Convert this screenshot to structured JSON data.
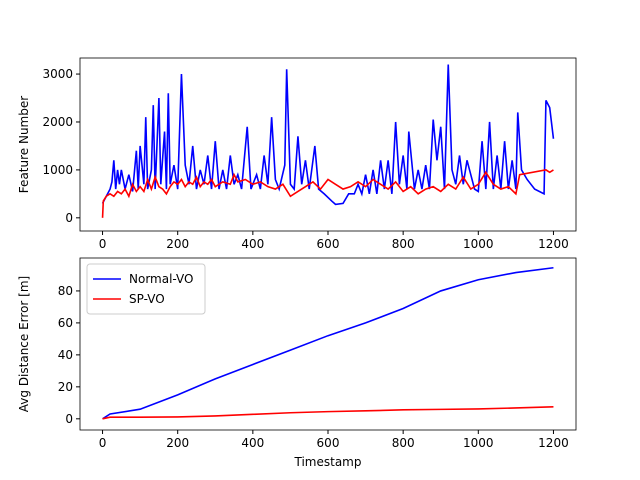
{
  "chart_data": [
    {
      "type": "line",
      "ylabel": "Feature Number",
      "xlim": [
        -60,
        1260
      ],
      "ylim": [
        -275,
        3335
      ],
      "xticks": [
        0,
        200,
        400,
        600,
        800,
        1000,
        1200
      ],
      "yticks": [
        0,
        1000,
        2000,
        3000
      ],
      "series": [
        {
          "color": "#0000ff",
          "x": [
            0,
            10,
            20,
            25,
            30,
            35,
            40,
            45,
            50,
            60,
            70,
            80,
            90,
            95,
            100,
            110,
            115,
            120,
            130,
            135,
            140,
            150,
            155,
            165,
            170,
            175,
            180,
            190,
            200,
            210,
            220,
            230,
            240,
            250,
            260,
            270,
            280,
            290,
            300,
            310,
            320,
            330,
            340,
            350,
            360,
            370,
            385,
            395,
            410,
            420,
            430,
            440,
            450,
            460,
            470,
            485,
            490,
            500,
            510,
            520,
            530,
            540,
            550,
            565,
            575,
            590,
            610,
            620,
            640,
            655,
            670,
            680,
            690,
            700,
            710,
            720,
            730,
            740,
            750,
            760,
            770,
            780,
            790,
            800,
            810,
            815,
            830,
            840,
            850,
            860,
            870,
            880,
            890,
            900,
            910,
            920,
            930,
            940,
            950,
            960,
            970,
            980,
            990,
            1000,
            1010,
            1020,
            1030,
            1040,
            1050,
            1060,
            1070,
            1080,
            1090,
            1100,
            1105,
            1115,
            1130,
            1150,
            1175,
            1180,
            1190,
            1200
          ],
          "values": [
            300,
            450,
            600,
            750,
            1200,
            600,
            1000,
            700,
            1000,
            600,
            900,
            550,
            1400,
            600,
            1500,
            700,
            2100,
            600,
            1000,
            2350,
            600,
            2500,
            700,
            1800,
            600,
            2600,
            700,
            1100,
            600,
            3000,
            1100,
            700,
            1500,
            600,
            1000,
            700,
            1300,
            600,
            1600,
            600,
            1000,
            600,
            1300,
            700,
            900,
            600,
            1900,
            600,
            900,
            600,
            1300,
            700,
            2100,
            800,
            600,
            1100,
            3100,
            700,
            600,
            1700,
            700,
            1200,
            600,
            1500,
            600,
            500,
            350,
            280,
            300,
            500,
            500,
            700,
            500,
            900,
            500,
            1000,
            500,
            1200,
            600,
            1200,
            500,
            2000,
            700,
            1300,
            600,
            1800,
            600,
            1000,
            600,
            1100,
            600,
            2050,
            1200,
            1900,
            600,
            3200,
            1000,
            700,
            1300,
            700,
            1200,
            900,
            600,
            550,
            1600,
            600,
            2000,
            600,
            1300,
            600,
            1600,
            600,
            1200,
            600,
            2200,
            1000,
            800,
            600,
            500,
            2450,
            2300,
            1650
          ]
        },
        {
          "color": "#ff0000",
          "x": [
            0,
            2,
            10,
            20,
            30,
            40,
            50,
            60,
            70,
            80,
            90,
            100,
            110,
            120,
            130,
            140,
            150,
            160,
            170,
            180,
            190,
            200,
            210,
            220,
            230,
            240,
            250,
            260,
            270,
            280,
            290,
            300,
            320,
            340,
            350,
            360,
            380,
            400,
            420,
            440,
            460,
            480,
            500,
            520,
            540,
            560,
            580,
            600,
            620,
            640,
            660,
            680,
            700,
            720,
            740,
            760,
            780,
            800,
            820,
            840,
            860,
            880,
            900,
            920,
            940,
            960,
            980,
            1000,
            1020,
            1040,
            1060,
            1080,
            1100,
            1110,
            1180,
            1190,
            1200
          ],
          "values": [
            0,
            350,
            450,
            500,
            450,
            550,
            500,
            600,
            450,
            700,
            550,
            650,
            550,
            800,
            600,
            850,
            650,
            600,
            500,
            650,
            750,
            700,
            800,
            650,
            750,
            700,
            850,
            650,
            750,
            700,
            800,
            650,
            750,
            700,
            900,
            750,
            800,
            700,
            750,
            650,
            600,
            700,
            450,
            550,
            650,
            750,
            600,
            800,
            700,
            600,
            650,
            750,
            650,
            800,
            700,
            600,
            750,
            550,
            650,
            500,
            600,
            650,
            550,
            700,
            600,
            850,
            600,
            700,
            950,
            700,
            600,
            650,
            500,
            900,
            1000,
            950,
            1000
          ]
        }
      ]
    },
    {
      "type": "line",
      "xlabel": "Timestamp",
      "ylabel": "Avg Distance Error [m]",
      "xlim": [
        -60,
        1260
      ],
      "ylim": [
        -7,
        100.6
      ],
      "xticks": [
        0,
        200,
        400,
        600,
        800,
        1000,
        1200
      ],
      "yticks": [
        0,
        20,
        40,
        60,
        80
      ],
      "legend": "upper left",
      "series": [
        {
          "name": "Normal-VO",
          "color": "#0000ff",
          "x": [
            0,
            20,
            100,
            200,
            300,
            400,
            500,
            600,
            700,
            800,
            900,
            1000,
            1100,
            1200
          ],
          "values": [
            0,
            3,
            6,
            15,
            25,
            34,
            43,
            52,
            60,
            69,
            80,
            87,
            91.5,
            94.5
          ]
        },
        {
          "name": "SP-VO",
          "color": "#ff0000",
          "x": [
            0,
            20,
            100,
            200,
            300,
            400,
            500,
            600,
            700,
            800,
            900,
            1000,
            1100,
            1200
          ],
          "values": [
            0,
            1,
            1,
            1.2,
            1.8,
            2.8,
            3.8,
            4.5,
            5,
            5.6,
            5.9,
            6.2,
            6.8,
            7.5
          ]
        }
      ]
    }
  ]
}
